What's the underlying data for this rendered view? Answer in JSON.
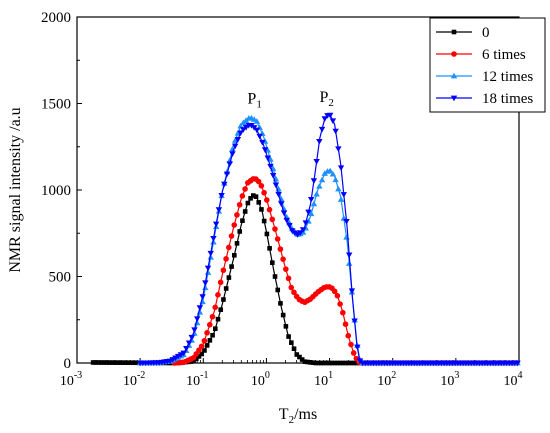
{
  "chart_data": {
    "type": "line",
    "xlabel_main": "T",
    "xlabel_sub": "2",
    "xlabel_rest": "/ms",
    "ylabel": "NMR signal intensity /a.u",
    "x_scale": "log",
    "xlim": [
      0.001,
      10000
    ],
    "ylim": [
      0,
      2000
    ],
    "yticks": [
      0,
      500,
      1000,
      1500,
      2000
    ],
    "xticks": [
      {
        "value": 0.001,
        "base": "10",
        "exp": "-3"
      },
      {
        "value": 0.01,
        "base": "10",
        "exp": "-2"
      },
      {
        "value": 0.1,
        "base": "10",
        "exp": "-1"
      },
      {
        "value": 1,
        "base": "10",
        "exp": "0"
      },
      {
        "value": 10,
        "base": "10",
        "exp": "1"
      },
      {
        "value": 100,
        "base": "10",
        "exp": "2"
      },
      {
        "value": 1000,
        "base": "10",
        "exp": "3"
      },
      {
        "value": 10000,
        "base": "10",
        "exp": "4"
      }
    ],
    "grid": false,
    "legend_position": "top-right",
    "annotations": [
      {
        "text": "P",
        "sub": "1",
        "x": 0.65,
        "y": 1500
      },
      {
        "text": "P",
        "sub": "2",
        "x": 9,
        "y": 1510
      }
    ],
    "series": [
      {
        "name": "0",
        "color": "#000000",
        "marker": "square",
        "points": [
          [
            0.0018,
            3
          ],
          [
            0.04,
            0
          ],
          [
            0.07,
            10
          ],
          [
            0.1,
            60
          ],
          [
            0.15,
            180
          ],
          [
            0.2,
            340
          ],
          [
            0.3,
            600
          ],
          [
            0.4,
            800
          ],
          [
            0.5,
            920
          ],
          [
            0.6,
            970
          ],
          [
            0.7,
            960
          ],
          [
            0.85,
            880
          ],
          [
            1.0,
            760
          ],
          [
            1.3,
            540
          ],
          [
            1.7,
            330
          ],
          [
            2.2,
            160
          ],
          [
            3.0,
            50
          ],
          [
            4.0,
            8
          ],
          [
            6.0,
            0
          ],
          [
            30,
            0
          ],
          [
            10000,
            0
          ]
        ]
      },
      {
        "name": "6 times",
        "color": "#ff0000",
        "marker": "circle",
        "points": [
          [
            0.035,
            0
          ],
          [
            0.05,
            5
          ],
          [
            0.07,
            30
          ],
          [
            0.1,
            110
          ],
          [
            0.15,
            300
          ],
          [
            0.2,
            510
          ],
          [
            0.3,
            780
          ],
          [
            0.4,
            950
          ],
          [
            0.5,
            1040
          ],
          [
            0.65,
            1070
          ],
          [
            0.8,
            1040
          ],
          [
            1.0,
            950
          ],
          [
            1.4,
            760
          ],
          [
            2.0,
            550
          ],
          [
            2.5,
            430
          ],
          [
            3.2,
            370
          ],
          [
            4.0,
            350
          ],
          [
            5.0,
            370
          ],
          [
            6.5,
            410
          ],
          [
            8.5,
            440
          ],
          [
            10.5,
            440
          ],
          [
            13.0,
            400
          ],
          [
            16.0,
            300
          ],
          [
            20.0,
            150
          ],
          [
            25.0,
            40
          ],
          [
            29.0,
            5
          ],
          [
            32.0,
            0
          ],
          [
            10000,
            0
          ]
        ]
      },
      {
        "name": "12 times",
        "color": "#1e90ff",
        "marker": "triangle-up",
        "points": [
          [
            0.01,
            0
          ],
          [
            0.02,
            2
          ],
          [
            0.03,
            10
          ],
          [
            0.05,
            50
          ],
          [
            0.07,
            150
          ],
          [
            0.1,
            370
          ],
          [
            0.15,
            730
          ],
          [
            0.2,
            990
          ],
          [
            0.3,
            1260
          ],
          [
            0.4,
            1380
          ],
          [
            0.55,
            1420
          ],
          [
            0.7,
            1400
          ],
          [
            0.9,
            1310
          ],
          [
            1.2,
            1160
          ],
          [
            1.6,
            990
          ],
          [
            2.0,
            860
          ],
          [
            2.6,
            770
          ],
          [
            3.2,
            740
          ],
          [
            4.0,
            760
          ],
          [
            5.0,
            850
          ],
          [
            6.5,
            1000
          ],
          [
            8.5,
            1100
          ],
          [
            10.0,
            1115
          ],
          [
            12.0,
            1080
          ],
          [
            15.0,
            960
          ],
          [
            19.0,
            700
          ],
          [
            23.0,
            380
          ],
          [
            27.0,
            120
          ],
          [
            30.0,
            20
          ],
          [
            33.0,
            0
          ],
          [
            10000,
            0
          ]
        ]
      },
      {
        "name": "18 times",
        "color": "#0000ff",
        "marker": "triangle-down",
        "points": [
          [
            0.01,
            0
          ],
          [
            0.02,
            2
          ],
          [
            0.03,
            12
          ],
          [
            0.05,
            60
          ],
          [
            0.07,
            170
          ],
          [
            0.1,
            400
          ],
          [
            0.15,
            750
          ],
          [
            0.2,
            990
          ],
          [
            0.3,
            1230
          ],
          [
            0.4,
            1340
          ],
          [
            0.55,
            1380
          ],
          [
            0.7,
            1350
          ],
          [
            0.9,
            1260
          ],
          [
            1.2,
            1120
          ],
          [
            1.6,
            960
          ],
          [
            2.0,
            840
          ],
          [
            2.6,
            760
          ],
          [
            3.2,
            740
          ],
          [
            4.0,
            780
          ],
          [
            5.0,
            920
          ],
          [
            6.0,
            1120
          ],
          [
            7.0,
            1300
          ],
          [
            8.5,
            1420
          ],
          [
            10.0,
            1440
          ],
          [
            12.0,
            1380
          ],
          [
            15.0,
            1150
          ],
          [
            19.0,
            780
          ],
          [
            23.0,
            380
          ],
          [
            27.0,
            110
          ],
          [
            30.0,
            15
          ],
          [
            33.0,
            0
          ],
          [
            10000,
            0
          ]
        ]
      }
    ]
  }
}
